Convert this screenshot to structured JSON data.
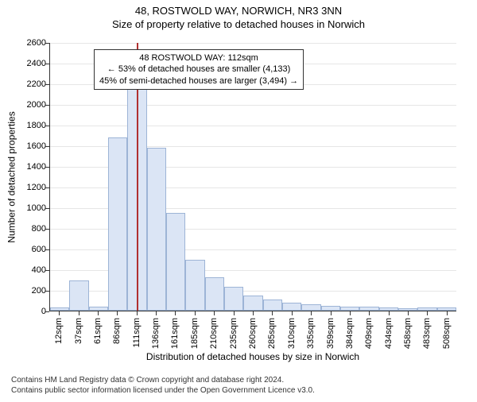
{
  "title": {
    "main": "48, ROSTWOLD WAY, NORWICH, NR3 3NN",
    "sub": "Size of property relative to detached houses in Norwich"
  },
  "chart": {
    "type": "histogram",
    "ylabel": "Number of detached properties",
    "xlabel": "Distribution of detached houses by size in Norwich",
    "ylim_max": 2600,
    "ytick_step": 200,
    "bar_fill": "#dbe5f5",
    "bar_stroke": "#9db4d6",
    "grid_color": "#e6e6e6",
    "background": "#ffffff",
    "title_fontsize": 13,
    "label_fontsize": 12,
    "tick_fontsize": 11,
    "indicator_color": "#b03030",
    "indicator_value_sqm": 112,
    "x_min": 0,
    "x_max": 520,
    "x_tick_labels": [
      "12sqm",
      "37sqm",
      "61sqm",
      "86sqm",
      "111sqm",
      "136sqm",
      "161sqm",
      "185sqm",
      "210sqm",
      "235sqm",
      "260sqm",
      "285sqm",
      "310sqm",
      "335sqm",
      "359sqm",
      "384sqm",
      "409sqm",
      "434sqm",
      "458sqm",
      "483sqm",
      "508sqm"
    ],
    "values": [
      30,
      290,
      40,
      1680,
      2180,
      1580,
      950,
      490,
      320,
      230,
      150,
      110,
      80,
      60,
      45,
      40,
      35,
      30,
      25,
      30,
      30
    ],
    "annotation": {
      "line1": "48 ROSTWOLD WAY: 112sqm",
      "line2": "← 53% of detached houses are smaller (4,133)",
      "line3": "45% of semi-detached houses are larger (3,494) →"
    }
  },
  "footer": {
    "line1": "Contains HM Land Registry data © Crown copyright and database right 2024.",
    "line2": "Contains public sector information licensed under the Open Government Licence v3.0."
  }
}
